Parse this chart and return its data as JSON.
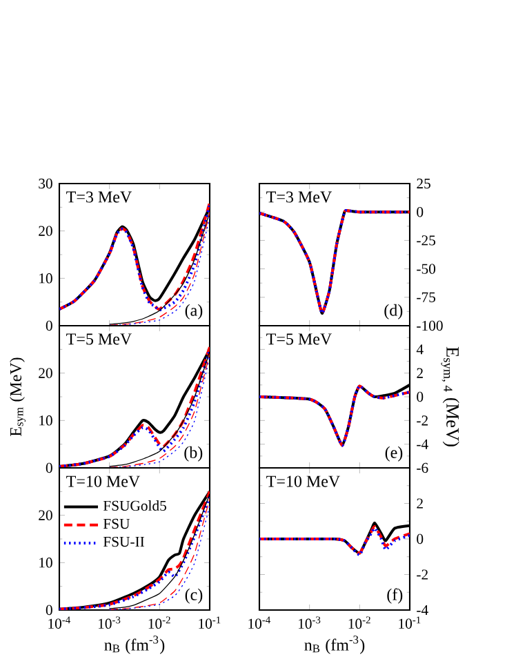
{
  "chart_data": [
    {
      "type": "line",
      "log": "x",
      "tick_labels": "y",
      "xlim": [
        0.0001,
        0.1
      ],
      "ylim": [
        0,
        30
      ],
      "xticks": [
        {
          "value": 0.0001,
          "label": null
        },
        {
          "value": 0.001,
          "label": null
        },
        {
          "value": 0.01,
          "label": null
        },
        {
          "value": 0.1,
          "label": null
        }
      ],
      "yticks": [
        0,
        10,
        20,
        30
      ],
      "annotations": [
        "T=3 MeV",
        "(a)"
      ],
      "series": [
        {
          "color": "#000000",
          "line_style": "solid",
          "x": [
            0.0001,
            0.0002,
            0.0005,
            0.001,
            0.0014,
            0.0018,
            0.0022,
            0.003,
            0.0045,
            0.0063,
            0.008,
            0.01,
            0.02,
            0.03,
            0.05,
            0.1
          ],
          "values": [
            3.5,
            5.2,
            9.5,
            15.3,
            19.6,
            20.9,
            20.2,
            17.2,
            9.5,
            6.1,
            5.3,
            5.8,
            11,
            14.3,
            18.2,
            25
          ]
        },
        {
          "color": "#ff0000",
          "line_style": "dashed",
          "x": [
            0.0001,
            0.0002,
            0.0005,
            0.001,
            0.0014,
            0.0018,
            0.0022,
            0.003,
            0.0045,
            0.0063,
            0.008,
            0.01,
            0.02,
            0.03,
            0.05,
            0.1
          ],
          "values": [
            3.5,
            5.2,
            9.5,
            15.2,
            19.4,
            20.5,
            19.8,
            16.5,
            8.5,
            5.2,
            4.2,
            3.5,
            6.5,
            9.5,
            15,
            26
          ]
        },
        {
          "color": "#0000ff",
          "line_style": "dotted",
          "x": [
            0.0001,
            0.0002,
            0.0005,
            0.001,
            0.0014,
            0.0018,
            0.0022,
            0.003,
            0.0045,
            0.0063,
            0.008,
            0.01,
            0.02,
            0.03,
            0.05,
            0.1
          ],
          "values": [
            3.5,
            5.2,
            9.5,
            15.2,
            19.3,
            20.4,
            19.7,
            16.3,
            8.3,
            4.8,
            4.2,
            3.3,
            5,
            7.5,
            13,
            25.5
          ]
        },
        {
          "color": "#000000",
          "line_style": "solid",
          "x": [
            0.001,
            0.002,
            0.003,
            0.005,
            0.01,
            0.02,
            0.03,
            0.05,
            0.1
          ],
          "values": [
            0.3,
            0.6,
            0.9,
            1.6,
            3.2,
            6.5,
            9,
            14,
            24
          ]
        },
        {
          "color": "#ff0000",
          "line_style": "dashed",
          "x": [
            0.001,
            0.002,
            0.003,
            0.005,
            0.01,
            0.02,
            0.03,
            0.05,
            0.1
          ],
          "values": [
            0.1,
            0.3,
            0.5,
            0.9,
            1.8,
            4,
            6,
            11,
            24
          ]
        },
        {
          "color": "#0000ff",
          "line_style": "dotted",
          "x": [
            0.001,
            0.002,
            0.003,
            0.005,
            0.01,
            0.02,
            0.03,
            0.05,
            0.1
          ],
          "values": [
            0.1,
            0.2,
            0.4,
            0.7,
            1.2,
            3,
            5,
            9.5,
            23
          ]
        }
      ]
    },
    {
      "type": "line",
      "log": "x",
      "tick_labels": "y",
      "xlim": [
        0.0001,
        0.1
      ],
      "y2lim": [
        -100,
        25
      ],
      "xticks": [
        {
          "value": 0.0001,
          "label": null
        },
        {
          "value": 0.001,
          "label": null
        },
        {
          "value": 0.01,
          "label": null
        },
        {
          "value": 0.1,
          "label": null
        }
      ],
      "y2ticks": [
        -100,
        -75,
        -50,
        -25,
        0,
        25
      ],
      "annotations": [
        "T=3 MeV",
        "(d)"
      ],
      "series": [
        {
          "color": "#000000",
          "line_style": "solid",
          "axis": "y2",
          "x": [
            0.0001,
            0.0003,
            0.0005,
            0.001,
            0.0015,
            0.0018,
            0.0025,
            0.0035,
            0.005,
            0.006,
            0.01,
            0.03,
            0.1
          ],
          "values": [
            -1,
            -8,
            -18,
            -44,
            -77,
            -89,
            -69,
            -28,
            0,
            1,
            0,
            0,
            0
          ]
        },
        {
          "color": "#ff0000",
          "line_style": "dashed",
          "axis": "y2",
          "x": [
            0.0001,
            0.0003,
            0.0005,
            0.001,
            0.0015,
            0.0018,
            0.0025,
            0.0035,
            0.005,
            0.006,
            0.01,
            0.03,
            0.1
          ],
          "values": [
            -1,
            -8,
            -18,
            -44,
            -77,
            -89,
            -69,
            -28,
            0,
            1,
            0,
            0,
            0
          ]
        },
        {
          "color": "#0000ff",
          "line_style": "dotted",
          "axis": "y2",
          "x": [
            0.0001,
            0.0003,
            0.0005,
            0.001,
            0.0015,
            0.0018,
            0.0025,
            0.0035,
            0.005,
            0.006,
            0.01,
            0.03,
            0.1
          ],
          "values": [
            -1,
            -8,
            -18,
            -44,
            -77,
            -89,
            -69,
            -28,
            0,
            1,
            0,
            0,
            0
          ]
        }
      ]
    },
    {
      "type": "line",
      "log": "x",
      "tick_labels": "y",
      "xlim": [
        0.0001,
        0.1
      ],
      "ylim": [
        0,
        30
      ],
      "ylabel": "E$_{sym}$ (MeV)",
      "xticks": [
        {
          "value": 0.0001,
          "label": null
        },
        {
          "value": 0.001,
          "label": null
        },
        {
          "value": 0.01,
          "label": null
        },
        {
          "value": 0.1,
          "label": null
        }
      ],
      "yticks": [
        0,
        10,
        20,
        {
          "value": 30,
          "label": null
        }
      ],
      "annotations": [
        "T=5 MeV",
        "(b)"
      ],
      "series": [
        {
          "color": "#000000",
          "line_style": "solid",
          "x": [
            0.0001,
            0.0003,
            0.001,
            0.002,
            0.003,
            0.0046,
            0.006,
            0.008,
            0.01,
            0.012,
            0.02,
            0.03,
            0.05,
            0.1
          ],
          "values": [
            0.3,
            0.9,
            2.5,
            5,
            7.5,
            10,
            9.6,
            8.2,
            7.5,
            7.8,
            11,
            15,
            19,
            25
          ]
        },
        {
          "color": "#ff0000",
          "line_style": "dashed",
          "x": [
            0.0001,
            0.0003,
            0.001,
            0.002,
            0.003,
            0.0046,
            0.006,
            0.008,
            0.01,
            0.012,
            0.02,
            0.03,
            0.05,
            0.1
          ],
          "values": [
            0.3,
            0.9,
            2.4,
            4.8,
            7,
            9,
            8.5,
            6.5,
            5,
            4.5,
            7,
            10,
            16,
            25.5
          ]
        },
        {
          "color": "#0000ff",
          "line_style": "dotted",
          "x": [
            0.0001,
            0.0003,
            0.001,
            0.002,
            0.003,
            0.0046,
            0.006,
            0.008,
            0.01,
            0.012,
            0.02,
            0.03,
            0.05,
            0.1
          ],
          "values": [
            0.3,
            0.9,
            2.4,
            4.7,
            6.8,
            8.5,
            8,
            6,
            4.3,
            3.5,
            6,
            8.5,
            14,
            25
          ]
        },
        {
          "color": "#000000",
          "line_style": "solid",
          "x": [
            0.001,
            0.002,
            0.003,
            0.005,
            0.01,
            0.02,
            0.03,
            0.05,
            0.1
          ],
          "values": [
            0.3,
            0.7,
            1.2,
            2,
            3.5,
            7,
            10,
            15,
            24.5
          ]
        },
        {
          "color": "#ff0000",
          "line_style": "dashed",
          "x": [
            0.001,
            0.002,
            0.003,
            0.005,
            0.01,
            0.02,
            0.03,
            0.05,
            0.1
          ],
          "values": [
            0.1,
            0.3,
            0.6,
            1,
            2,
            4.5,
            7,
            12,
            24
          ]
        },
        {
          "color": "#0000ff",
          "line_style": "dotted",
          "x": [
            0.001,
            0.002,
            0.003,
            0.005,
            0.01,
            0.02,
            0.03,
            0.05,
            0.1
          ],
          "values": [
            0.1,
            0.2,
            0.4,
            0.7,
            1.3,
            3.5,
            5.5,
            10,
            23.5
          ]
        }
      ]
    },
    {
      "type": "line",
      "log": "x",
      "tick_labels": "y",
      "xlim": [
        0.0001,
        0.1
      ],
      "y2lim": [
        -6,
        6
      ],
      "y2label": "E$_{sym, 4}$ (MeV)",
      "xticks": [
        {
          "value": 0.0001,
          "label": null
        },
        {
          "value": 0.001,
          "label": null
        },
        {
          "value": 0.01,
          "label": null
        },
        {
          "value": 0.1,
          "label": null
        }
      ],
      "y2ticks": [
        -6,
        -4,
        -2,
        0,
        2,
        4,
        {
          "value": 6,
          "label": null
        }
      ],
      "annotations": [
        "T=5 MeV",
        "(e)"
      ],
      "series": [
        {
          "color": "#000000",
          "line_style": "solid",
          "axis": "y2",
          "x": [
            0.0001,
            0.001,
            0.002,
            0.003,
            0.0045,
            0.006,
            0.008,
            0.01,
            0.015,
            0.02,
            0.03,
            0.05,
            0.1
          ],
          "values": [
            0,
            -0.2,
            -1,
            -2.5,
            -4.1,
            -2.5,
            0,
            0.9,
            0.3,
            0,
            0.1,
            0.3,
            1.0
          ]
        },
        {
          "color": "#ff0000",
          "line_style": "dashed",
          "axis": "y2",
          "x": [
            0.0001,
            0.001,
            0.002,
            0.003,
            0.0045,
            0.006,
            0.008,
            0.01,
            0.015,
            0.02,
            0.03,
            0.05,
            0.1
          ],
          "values": [
            0,
            -0.2,
            -1,
            -2.5,
            -4.1,
            -2.5,
            0,
            0.9,
            0.3,
            0,
            -0.1,
            0.1,
            0.4
          ]
        },
        {
          "color": "#0000ff",
          "line_style": "dotted",
          "axis": "y2",
          "x": [
            0.0001,
            0.001,
            0.002,
            0.003,
            0.0045,
            0.006,
            0.008,
            0.01,
            0.015,
            0.02,
            0.03,
            0.05,
            0.1
          ],
          "values": [
            0,
            -0.2,
            -1,
            -2.5,
            -4.1,
            -2.5,
            0,
            0.9,
            0.3,
            0,
            -0.1,
            0.1,
            0.4
          ]
        }
      ]
    },
    {
      "type": "line",
      "log": "x",
      "legend": "top left",
      "xlim": [
        0.0001,
        0.1
      ],
      "ylim": [
        0,
        30
      ],
      "xlabel": "n$_{B}$ (fm$^{-3}$)",
      "xticks": [
        {
          "value": 0.0001,
          "label": "10$^{-4}$"
        },
        {
          "value": 0.001,
          "label": "10$^{-3}$"
        },
        {
          "value": 0.01,
          "label": "10$^{-2}$"
        },
        {
          "value": 0.1,
          "label": "10$^{-1}$"
        }
      ],
      "yticks": [
        0,
        10,
        20,
        {
          "value": 30,
          "label": null
        }
      ],
      "annotations": [
        "T=10 MeV",
        "(c)"
      ],
      "series": [
        {
          "name": "FSUGold5",
          "color": "#000000",
          "line_style": "solid",
          "x": [
            0.0001,
            0.0003,
            0.001,
            0.003,
            0.006,
            0.01,
            0.015,
            0.02,
            0.025,
            0.03,
            0.05,
            0.1
          ],
          "values": [
            0.2,
            0.6,
            1.5,
            3.5,
            5.2,
            7,
            10.5,
            11.6,
            12,
            15,
            20,
            25
          ]
        },
        {
          "name": "FSU",
          "color": "#ff0000",
          "line_style": "dashed",
          "x": [
            0.0001,
            0.0003,
            0.001,
            0.003,
            0.006,
            0.01,
            0.015,
            0.02,
            0.025,
            0.03,
            0.05,
            0.1
          ],
          "values": [
            0.2,
            0.5,
            1.2,
            3,
            4.8,
            6.5,
            8.5,
            8.7,
            9.5,
            11,
            17,
            25
          ]
        },
        {
          "name": "FSU-II",
          "color": "#0000ff",
          "line_style": "dotted",
          "x": [
            0.0001,
            0.0003,
            0.001,
            0.003,
            0.006,
            0.01,
            0.015,
            0.02,
            0.025,
            0.03,
            0.05,
            0.1
          ],
          "values": [
            0.2,
            0.5,
            1.1,
            2.8,
            4.5,
            6,
            8,
            7,
            8.5,
            10,
            15.5,
            24
          ]
        },
        {
          "color": "#000000",
          "line_style": "solid",
          "x": [
            0.001,
            0.002,
            0.003,
            0.005,
            0.01,
            0.02,
            0.03,
            0.05,
            0.1
          ],
          "values": [
            0.3,
            0.6,
            1,
            2,
            3.5,
            7,
            10.5,
            16,
            24.5
          ]
        },
        {
          "color": "#ff0000",
          "line_style": "dashed",
          "x": [
            0.001,
            0.002,
            0.003,
            0.005,
            0.01,
            0.02,
            0.03,
            0.05,
            0.1
          ],
          "values": [
            0.1,
            0.3,
            0.5,
            0.8,
            1.5,
            4,
            7,
            12,
            23.5
          ]
        },
        {
          "color": "#0000ff",
          "line_style": "dotted",
          "x": [
            0.001,
            0.002,
            0.003,
            0.005,
            0.01,
            0.02,
            0.03,
            0.05,
            0.1
          ],
          "values": [
            0.1,
            0.2,
            0.4,
            0.7,
            1.2,
            3,
            5.5,
            10,
            22
          ]
        }
      ]
    },
    {
      "type": "line",
      "log": "x",
      "xlim": [
        0.0001,
        0.1
      ],
      "y2lim": [
        -4,
        4
      ],
      "xlabel": "n$_{B}$ (fm$^{-3}$)",
      "xticks": [
        {
          "value": 0.0001,
          "label": "10$^{-4}$"
        },
        {
          "value": 0.001,
          "label": "10$^{-3}$"
        },
        {
          "value": 0.01,
          "label": "10$^{-2}$"
        },
        {
          "value": 0.1,
          "label": "10$^{-1}$"
        }
      ],
      "y2ticks": [
        -4,
        -2,
        0,
        2,
        {
          "value": 4,
          "label": null
        }
      ],
      "annotations": [
        "T=10 MeV",
        "(f)"
      ],
      "series": [
        {
          "color": "#000000",
          "line_style": "solid",
          "axis": "y2",
          "x": [
            0.0001,
            0.003,
            0.005,
            0.007,
            0.01,
            0.013,
            0.017,
            0.02,
            0.027,
            0.033,
            0.05,
            0.1
          ],
          "values": [
            0,
            0,
            -0.1,
            -0.5,
            -0.8,
            -0.2,
            0.5,
            0.9,
            0.3,
            -0.1,
            0.6,
            0.75
          ]
        },
        {
          "color": "#ff0000",
          "line_style": "dashed",
          "axis": "y2",
          "x": [
            0.0001,
            0.003,
            0.005,
            0.007,
            0.01,
            0.013,
            0.017,
            0.02,
            0.027,
            0.033,
            0.05,
            0.1
          ],
          "values": [
            0,
            0,
            -0.1,
            -0.5,
            -0.8,
            -0.2,
            0.4,
            0.7,
            0.1,
            -0.4,
            0,
            0.3
          ]
        },
        {
          "color": "#0000ff",
          "line_style": "dotted",
          "axis": "y2",
          "x": [
            0.0001,
            0.003,
            0.005,
            0.007,
            0.01,
            0.013,
            0.017,
            0.02,
            0.027,
            0.033,
            0.05,
            0.1
          ],
          "values": [
            0,
            0,
            -0.1,
            -0.5,
            -0.9,
            -0.2,
            0.3,
            0.6,
            0,
            -0.6,
            -0.1,
            0.2
          ]
        }
      ]
    }
  ]
}
